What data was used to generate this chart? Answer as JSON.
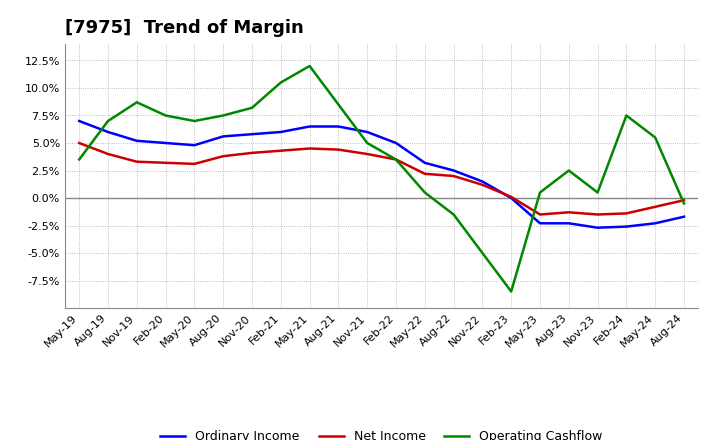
{
  "title": "[7975]  Trend of Margin",
  "x_labels": [
    "May-19",
    "Aug-19",
    "Nov-19",
    "Feb-20",
    "May-20",
    "Aug-20",
    "Nov-20",
    "Feb-21",
    "May-21",
    "Aug-21",
    "Nov-21",
    "Feb-22",
    "May-22",
    "Aug-22",
    "Nov-22",
    "Feb-23",
    "May-23",
    "Aug-23",
    "Nov-23",
    "Feb-24",
    "May-24",
    "Aug-24"
  ],
  "ordinary_income": [
    7.0,
    6.0,
    5.2,
    5.0,
    4.8,
    5.6,
    5.8,
    6.0,
    6.5,
    6.5,
    6.0,
    5.0,
    3.2,
    2.5,
    1.5,
    0.0,
    -2.3,
    -2.3,
    -2.7,
    -2.6,
    -2.3,
    -1.7
  ],
  "net_income": [
    5.0,
    4.0,
    3.3,
    3.2,
    3.1,
    3.8,
    4.1,
    4.3,
    4.5,
    4.4,
    4.0,
    3.5,
    2.2,
    2.0,
    1.2,
    0.1,
    -1.5,
    -1.3,
    -1.5,
    -1.4,
    -0.8,
    -0.2
  ],
  "operating_cashflow": [
    3.5,
    7.0,
    8.7,
    7.5,
    7.0,
    7.5,
    8.2,
    10.5,
    12.0,
    8.5,
    5.0,
    3.5,
    0.5,
    -1.5,
    -5.0,
    -8.5,
    0.5,
    2.5,
    0.5,
    7.5,
    5.5,
    -0.5
  ],
  "ordinary_income_color": "#0000FF",
  "net_income_color": "#CC0000",
  "operating_cashflow_color": "#008800",
  "background_color": "#FFFFFF",
  "grid_color": "#AAAAAA",
  "ylim": [
    -10.0,
    14.0
  ],
  "yticks": [
    -7.5,
    -5.0,
    -2.5,
    0.0,
    2.5,
    5.0,
    7.5,
    10.0,
    12.5
  ],
  "title_fontsize": 13,
  "legend_labels": [
    "Ordinary Income",
    "Net Income",
    "Operating Cashflow"
  ]
}
